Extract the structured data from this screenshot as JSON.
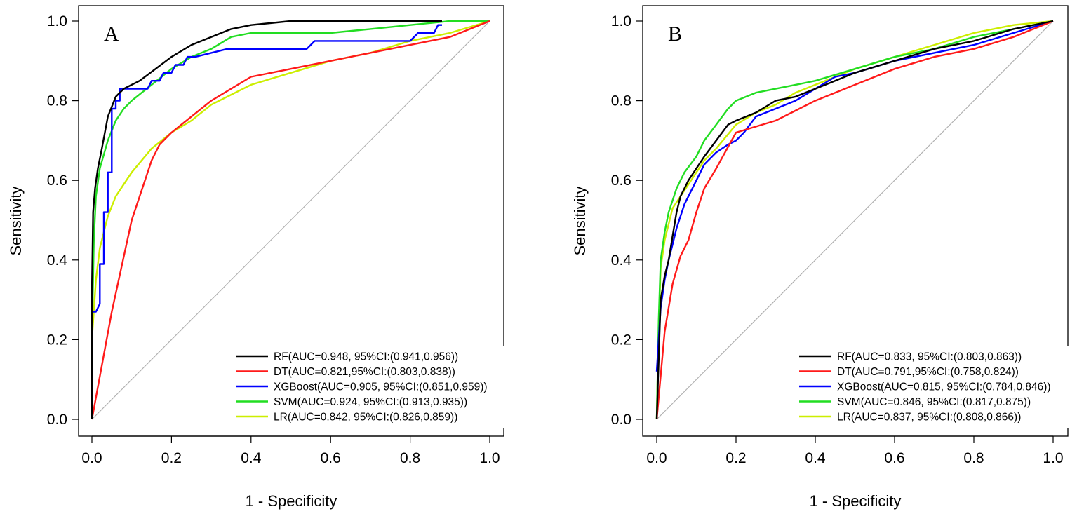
{
  "chart_data": [
    {
      "type": "line",
      "panel_label": "A",
      "xlabel": "1 - Specificity",
      "ylabel": "Sensitivity",
      "xlim": [
        0,
        1
      ],
      "ylim": [
        0,
        1
      ],
      "xticks": [
        "0.0",
        "0.2",
        "0.4",
        "0.6",
        "0.8",
        "1.0"
      ],
      "yticks": [
        "0.0",
        "0.2",
        "0.4",
        "0.6",
        "0.8",
        "1.0"
      ],
      "legend_position": "bottom-right",
      "reference_line": {
        "x": [
          0,
          1
        ],
        "y": [
          0,
          1
        ],
        "color": "#b0b0b0"
      },
      "series": [
        {
          "name": "RF",
          "label": "RF(AUC=0.948, 95%CI:(0.941,0.956))",
          "color": "#000000",
          "x": [
            0,
            0,
            0.003,
            0.008,
            0.015,
            0.025,
            0.04,
            0.06,
            0.08,
            0.12,
            0.16,
            0.2,
            0.25,
            0.3,
            0.35,
            0.4,
            0.5,
            0.6,
            0.7,
            0.8,
            0.88
          ],
          "y": [
            0,
            0.32,
            0.52,
            0.58,
            0.63,
            0.68,
            0.76,
            0.81,
            0.83,
            0.85,
            0.88,
            0.91,
            0.94,
            0.96,
            0.98,
            0.99,
            1,
            1,
            1,
            1,
            1
          ]
        },
        {
          "name": "DT",
          "label": "DT(AUC=0.821,95%CI:(0.803,0.838))",
          "color": "#ff1a1a",
          "x": [
            0,
            0.05,
            0.1,
            0.15,
            0.17,
            0.2,
            0.3,
            0.4,
            0.5,
            0.6,
            0.7,
            0.8,
            0.9,
            1
          ],
          "y": [
            0,
            0.27,
            0.5,
            0.65,
            0.69,
            0.72,
            0.8,
            0.86,
            0.88,
            0.9,
            0.92,
            0.94,
            0.96,
            1
          ]
        },
        {
          "name": "XGBoost",
          "label": "XGBoost(AUC=0.905, 95%CI:(0.851,0.959))",
          "color": "#0000ff",
          "x": [
            0,
            0,
            0.01,
            0.02,
            0.02,
            0.03,
            0.03,
            0.04,
            0.04,
            0.05,
            0.05,
            0.06,
            0.06,
            0.07,
            0.07,
            0.1,
            0.14,
            0.15,
            0.17,
            0.18,
            0.2,
            0.21,
            0.23,
            0.24,
            0.26,
            0.34,
            0.54,
            0.56,
            0.8,
            0.82,
            0.86,
            0.87,
            0.88
          ],
          "y": [
            0.2,
            0.27,
            0.27,
            0.29,
            0.39,
            0.39,
            0.52,
            0.52,
            0.62,
            0.62,
            0.78,
            0.78,
            0.8,
            0.8,
            0.83,
            0.83,
            0.83,
            0.85,
            0.85,
            0.87,
            0.87,
            0.89,
            0.89,
            0.91,
            0.91,
            0.93,
            0.93,
            0.95,
            0.95,
            0.97,
            0.97,
            0.99,
            0.99
          ]
        },
        {
          "name": "SVM",
          "label": "SVM(AUC=0.924, 95%CI:(0.913,0.935))",
          "color": "#22dd22",
          "x": [
            0,
            0,
            0.005,
            0.01,
            0.02,
            0.04,
            0.06,
            0.08,
            0.1,
            0.15,
            0.2,
            0.25,
            0.3,
            0.35,
            0.4,
            0.5,
            0.6,
            0.7,
            0.8,
            0.9,
            1
          ],
          "y": [
            0,
            0.2,
            0.45,
            0.56,
            0.63,
            0.7,
            0.75,
            0.78,
            0.8,
            0.84,
            0.88,
            0.91,
            0.93,
            0.96,
            0.97,
            0.97,
            0.97,
            0.98,
            0.99,
            1,
            1
          ]
        },
        {
          "name": "LR",
          "label": "LR(AUC=0.842, 95%CI:(0.826,0.859))",
          "color": "#ccee00",
          "x": [
            0,
            0,
            0.01,
            0.02,
            0.04,
            0.06,
            0.1,
            0.15,
            0.2,
            0.25,
            0.3,
            0.4,
            0.5,
            0.6,
            0.7,
            0.8,
            0.9,
            1
          ],
          "y": [
            0,
            0.2,
            0.35,
            0.43,
            0.51,
            0.56,
            0.62,
            0.68,
            0.72,
            0.75,
            0.79,
            0.84,
            0.87,
            0.9,
            0.92,
            0.95,
            0.97,
            1
          ]
        }
      ]
    },
    {
      "type": "line",
      "panel_label": "B",
      "xlabel": "1 - Specificity",
      "ylabel": "Sensitivity",
      "xlim": [
        0,
        1
      ],
      "ylim": [
        0,
        1
      ],
      "xticks": [
        "0.0",
        "0.2",
        "0.4",
        "0.6",
        "0.8",
        "1.0"
      ],
      "yticks": [
        "0.0",
        "0.2",
        "0.4",
        "0.6",
        "0.8",
        "1.0"
      ],
      "legend_position": "bottom-right",
      "reference_line": {
        "x": [
          0,
          1
        ],
        "y": [
          0,
          1
        ],
        "color": "#b0b0b0"
      },
      "series": [
        {
          "name": "RF",
          "label": "RF(AUC=0.833, 95%CI:(0.803,0.863))",
          "color": "#000000",
          "x": [
            0,
            0.005,
            0.01,
            0.02,
            0.03,
            0.04,
            0.05,
            0.06,
            0.08,
            0.1,
            0.12,
            0.15,
            0.18,
            0.2,
            0.25,
            0.3,
            0.35,
            0.4,
            0.5,
            0.6,
            0.7,
            0.8,
            0.9,
            1
          ],
          "y": [
            0,
            0.15,
            0.3,
            0.36,
            0.4,
            0.46,
            0.52,
            0.56,
            0.6,
            0.63,
            0.66,
            0.7,
            0.74,
            0.75,
            0.77,
            0.8,
            0.81,
            0.83,
            0.87,
            0.9,
            0.93,
            0.95,
            0.98,
            1
          ]
        },
        {
          "name": "DT",
          "label": "DT(AUC=0.791,95%CI:(0.758,0.824))",
          "color": "#ff1a1a",
          "x": [
            0,
            0.02,
            0.04,
            0.06,
            0.08,
            0.1,
            0.12,
            0.15,
            0.2,
            0.3,
            0.4,
            0.5,
            0.6,
            0.7,
            0.8,
            0.9,
            1
          ],
          "y": [
            0,
            0.22,
            0.34,
            0.41,
            0.45,
            0.52,
            0.58,
            0.63,
            0.72,
            0.75,
            0.8,
            0.84,
            0.88,
            0.91,
            0.93,
            0.96,
            1
          ]
        },
        {
          "name": "XGBoost",
          "label": "XGBoost(AUC=0.815, 95%CI:(0.784,0.846))",
          "color": "#0000ff",
          "x": [
            0,
            0.005,
            0.01,
            0.02,
            0.03,
            0.05,
            0.07,
            0.1,
            0.12,
            0.15,
            0.18,
            0.2,
            0.22,
            0.25,
            0.3,
            0.35,
            0.4,
            0.45,
            0.5,
            0.6,
            0.7,
            0.8,
            0.9,
            1
          ],
          "y": [
            0.12,
            0.2,
            0.28,
            0.35,
            0.4,
            0.48,
            0.54,
            0.6,
            0.64,
            0.67,
            0.69,
            0.7,
            0.72,
            0.76,
            0.78,
            0.8,
            0.83,
            0.86,
            0.87,
            0.9,
            0.92,
            0.94,
            0.97,
            1
          ]
        },
        {
          "name": "SVM",
          "label": "SVM(AUC=0.846, 95%CI:(0.817,0.875))",
          "color": "#22dd22",
          "x": [
            0,
            0.005,
            0.01,
            0.02,
            0.03,
            0.05,
            0.07,
            0.1,
            0.12,
            0.15,
            0.18,
            0.2,
            0.25,
            0.3,
            0.35,
            0.4,
            0.5,
            0.6,
            0.7,
            0.8,
            0.9,
            1
          ],
          "y": [
            0,
            0.25,
            0.4,
            0.47,
            0.52,
            0.58,
            0.62,
            0.66,
            0.7,
            0.74,
            0.78,
            0.8,
            0.82,
            0.83,
            0.84,
            0.85,
            0.88,
            0.91,
            0.93,
            0.96,
            0.98,
            1
          ]
        },
        {
          "name": "LR",
          "label": "LR(AUC=0.837, 95%CI:(0.808,0.866))",
          "color": "#ccee00",
          "x": [
            0,
            0.005,
            0.01,
            0.02,
            0.04,
            0.06,
            0.08,
            0.1,
            0.12,
            0.15,
            0.2,
            0.25,
            0.3,
            0.35,
            0.4,
            0.5,
            0.6,
            0.7,
            0.8,
            0.9,
            1
          ],
          "y": [
            0,
            0.23,
            0.38,
            0.45,
            0.53,
            0.56,
            0.59,
            0.62,
            0.65,
            0.68,
            0.74,
            0.77,
            0.79,
            0.82,
            0.84,
            0.88,
            0.91,
            0.94,
            0.97,
            0.99,
            1
          ]
        }
      ]
    }
  ]
}
